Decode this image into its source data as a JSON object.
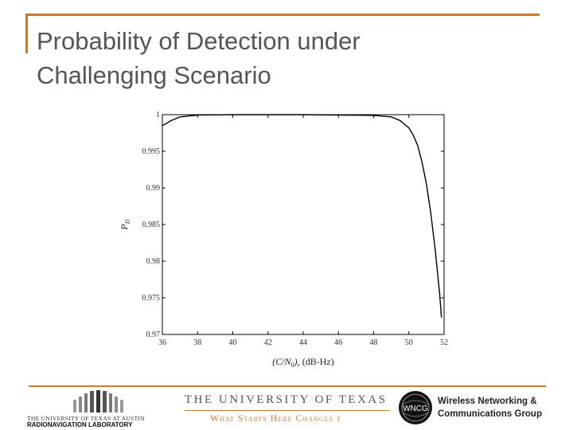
{
  "slide": {
    "title_lines": [
      "Probability of Detection under",
      "Challenging Scenario"
    ]
  },
  "chart_data": {
    "type": "line",
    "title": "",
    "xlabel": "(C/N0)r (dB-Hz)",
    "ylabel": "PD",
    "xlim": [
      36,
      52
    ],
    "ylim": [
      0.97,
      1.0
    ],
    "x_ticks": [
      36,
      38,
      40,
      42,
      44,
      46,
      48,
      50,
      52
    ],
    "x_tick_labels": [
      "36",
      "38",
      "40",
      "42",
      "44",
      "46",
      "48",
      "50",
      "52"
    ],
    "y_ticks": [
      0.97,
      0.975,
      0.98,
      0.985,
      0.99,
      0.995,
      1.0
    ],
    "y_tick_labels": [
      "0.97",
      "0.975",
      "0.98",
      "0.985",
      "0.99",
      "0.995",
      "1"
    ],
    "grid": false,
    "series": [
      {
        "color": "#000000",
        "x": [
          36,
          36.5,
          37,
          38,
          40,
          44,
          48,
          49,
          49.5,
          50,
          50.25,
          50.5,
          50.75,
          51,
          51.25,
          51.5,
          51.75,
          51.85
        ],
        "y": [
          0.9985,
          0.9992,
          0.9997,
          0.99995,
          1.0,
          1.0,
          0.9999,
          0.9997,
          0.9992,
          0.9982,
          0.9972,
          0.9958,
          0.9935,
          0.9905,
          0.9865,
          0.9815,
          0.9755,
          0.9723
        ]
      }
    ]
  },
  "footer": {
    "lab_line1": "THE UNIVERSITY OF TEXAS AT AUSTIN",
    "lab_line2": "RADIONAVIGATION LABORATORY",
    "ut_name": "THE UNIVERSITY OF TEXAS",
    "ut_motto": "What Starts Here Changes t",
    "wncg_badge": "WNCG",
    "wncg_line1": "Wireless Networking &",
    "wncg_line2": "Communications Group",
    "accent_color": "#c87d36"
  }
}
